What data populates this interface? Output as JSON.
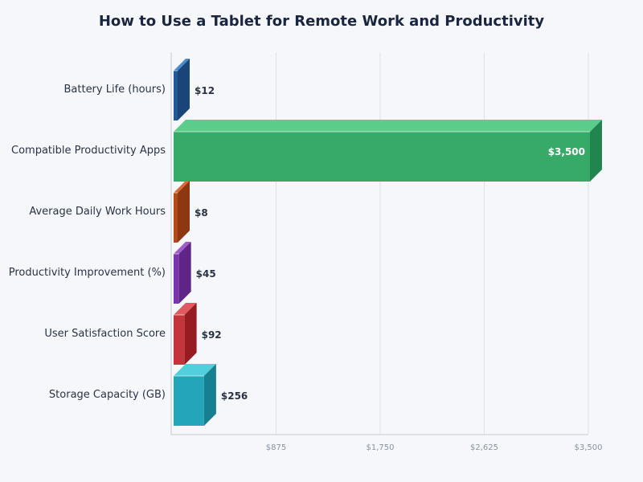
{
  "chart_data": {
    "type": "bar",
    "orientation": "horizontal",
    "title": "How to Use a Tablet for Remote Work and Productivity",
    "xlabel": "",
    "ylabel": "",
    "xlim": [
      0,
      3500
    ],
    "x_ticks": [
      "$875",
      "$1,750",
      "$2,625",
      "$3,500"
    ],
    "grid": true,
    "categories": [
      "Battery Life (hours)",
      "Compatible Productivity Apps",
      "Average Daily Work Hours",
      "Productivity Improvement (%)",
      "User Satisfaction Score",
      "Storage Capacity (GB)"
    ],
    "values": [
      12,
      3500,
      8,
      45,
      92,
      256
    ],
    "value_labels": [
      "$12",
      "$3,500",
      "$8",
      "$45",
      "$92",
      "$256"
    ],
    "colors": [
      {
        "front": "#22599a",
        "top": "#4a8ad0",
        "side": "#1a4578"
      },
      {
        "front": "#37aa68",
        "top": "#5acd8c",
        "side": "#218550"
      },
      {
        "front": "#b34a1c",
        "top": "#d86a38",
        "side": "#8e3812"
      },
      {
        "front": "#7a36a8",
        "top": "#a05ccc",
        "side": "#5e2486"
      },
      {
        "front": "#c2353a",
        "top": "#e05a60",
        "side": "#961c22"
      },
      {
        "front": "#25a6b8",
        "top": "#50cfdc",
        "side": "#168090"
      }
    ]
  }
}
